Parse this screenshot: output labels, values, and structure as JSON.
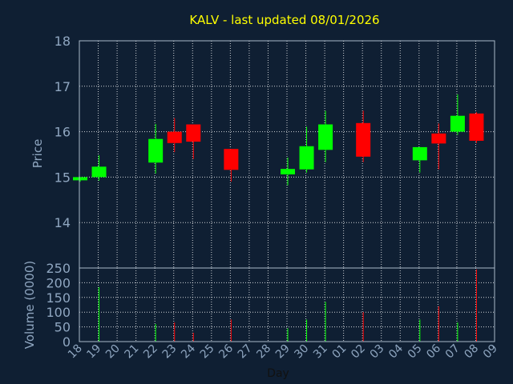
{
  "chart_data": {
    "type": "candlestick",
    "title": "KALV - last updated 08/01/2026",
    "xlabel": "Day",
    "price_panel": {
      "ylabel": "Price",
      "ylim": [
        13.0,
        18.0
      ],
      "yticks": [
        14,
        15,
        16,
        17,
        18
      ],
      "grid": true
    },
    "volume_panel": {
      "ylabel": "Volume (0000)",
      "ylim": [
        0,
        250
      ],
      "yticks": [
        0,
        50,
        100,
        150,
        200,
        250
      ],
      "grid": true
    },
    "x_ticks": [
      "18",
      "19",
      "20",
      "21",
      "22",
      "23",
      "24",
      "25",
      "26",
      "27",
      "28",
      "29",
      "30",
      "31",
      "01",
      "02",
      "03",
      "04",
      "05",
      "06",
      "07",
      "08",
      "09"
    ],
    "colors": {
      "up": "#00ff00",
      "down": "#ff0000",
      "background": "#0f1f33",
      "title": "#ffff00",
      "axis_text": "#8fa6c0",
      "grid": "#ffffff"
    },
    "candles": [
      {
        "day": "18",
        "open": 14.93,
        "close": 15.0,
        "high": 15.0,
        "low": 14.9,
        "volume": 0
      },
      {
        "day": "19",
        "open": 15.0,
        "close": 15.23,
        "high": 15.48,
        "low": 14.92,
        "volume": 185
      },
      {
        "day": "22",
        "open": 15.32,
        "close": 15.84,
        "high": 16.17,
        "low": 15.08,
        "volume": 60
      },
      {
        "day": "23",
        "open": 16.0,
        "close": 15.75,
        "high": 16.3,
        "low": 15.55,
        "volume": 65
      },
      {
        "day": "24",
        "open": 16.16,
        "close": 15.78,
        "high": 16.16,
        "low": 15.4,
        "volume": 30
      },
      {
        "day": "26",
        "open": 15.62,
        "close": 15.16,
        "high": 15.62,
        "low": 14.9,
        "volume": 75
      },
      {
        "day": "29",
        "open": 15.06,
        "close": 15.18,
        "high": 15.43,
        "low": 14.82,
        "volume": 45
      },
      {
        "day": "30",
        "open": 15.17,
        "close": 15.68,
        "high": 16.11,
        "low": 15.1,
        "volume": 75
      },
      {
        "day": "31",
        "open": 15.6,
        "close": 16.16,
        "high": 16.46,
        "low": 15.33,
        "volume": 135
      },
      {
        "day": "02",
        "open": 16.19,
        "close": 15.45,
        "high": 16.46,
        "low": 15.33,
        "volume": 100
      },
      {
        "day": "05",
        "open": 15.37,
        "close": 15.66,
        "high": 15.66,
        "low": 15.1,
        "volume": 75
      },
      {
        "day": "06",
        "open": 15.96,
        "close": 15.74,
        "high": 16.18,
        "low": 15.17,
        "volume": 120
      },
      {
        "day": "07",
        "open": 16.0,
        "close": 16.35,
        "high": 16.82,
        "low": 15.93,
        "volume": 65
      },
      {
        "day": "08",
        "open": 16.4,
        "close": 15.8,
        "high": 16.43,
        "low": 15.75,
        "volume": 245
      }
    ]
  }
}
